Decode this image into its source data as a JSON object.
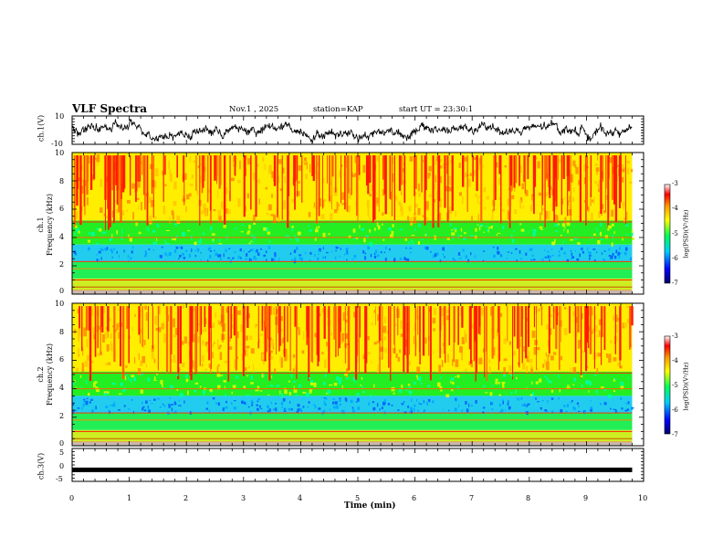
{
  "header": {
    "title": "VLF Spectra",
    "date": "Nov.1 , 2025",
    "station": "station=KAP",
    "start_ut": "start UT = 23:30:1"
  },
  "chart_data": [
    {
      "type": "line",
      "name": "ch1-waveform",
      "ylabel": "ch.1(V)",
      "ylim": [
        -10,
        10
      ],
      "yticks": [
        "10",
        "-10"
      ],
      "xlim": [
        0,
        10
      ]
    },
    {
      "type": "heatmap",
      "name": "ch1-spectrogram",
      "ylabel": "ch.1\nFrequency (kHz)",
      "ylabel_line1": "ch.1",
      "ylabel_line2": "Frequency (kHz)",
      "ylim": [
        0,
        10
      ],
      "yticks": [
        "0",
        "2",
        "4",
        "6",
        "8",
        "10"
      ],
      "xlim": [
        0,
        10
      ],
      "colorbar": {
        "label": "log(PSD)(V²/Hz)",
        "range": [
          -7,
          -3
        ],
        "ticks": [
          "-3",
          "-4",
          "-5",
          "-6",
          "-7"
        ]
      }
    },
    {
      "type": "heatmap",
      "name": "ch2-spectrogram",
      "ylabel_line1": "ch.2",
      "ylabel_line2": "Frequency (kHz)",
      "ylim": [
        0,
        10
      ],
      "yticks": [
        "0",
        "2",
        "4",
        "6",
        "8",
        "10"
      ],
      "xlim": [
        0,
        10
      ],
      "colorbar": {
        "label": "log(PSD)(V²/Hz)",
        "range": [
          -7,
          -3
        ],
        "ticks": [
          "-3",
          "-4",
          "-5",
          "-6",
          "-7"
        ]
      }
    },
    {
      "type": "line",
      "name": "ch3-waveform",
      "ylabel": "ch.3(V)",
      "ylim": [
        -5,
        5
      ],
      "yticks": [
        "5",
        "0",
        "-5"
      ],
      "xlim": [
        0,
        10
      ],
      "value_level": -1.5
    }
  ],
  "xaxis": {
    "label": "Time (min)",
    "ticks": [
      "0",
      "1",
      "2",
      "3",
      "4",
      "5",
      "6",
      "7",
      "8",
      "9",
      "10"
    ],
    "data_end": 9.8
  },
  "colors": {
    "frame": "#000000",
    "scale": [
      "#000066",
      "#0000ff",
      "#00ccff",
      "#00ff66",
      "#ffff00",
      "#ff9900",
      "#ff0000",
      "#ffffff"
    ]
  }
}
